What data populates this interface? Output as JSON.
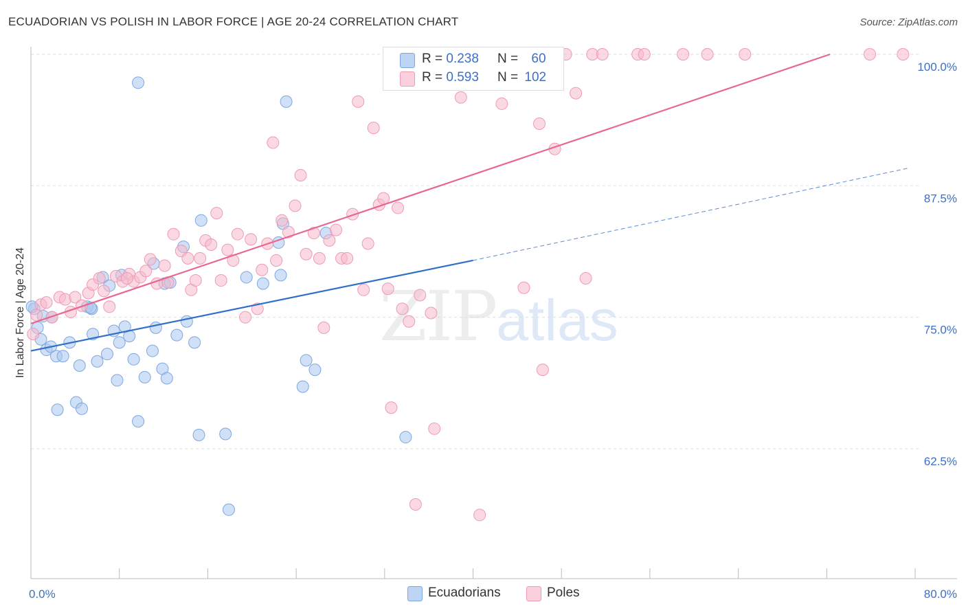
{
  "title": "ECUADORIAN VS POLISH IN LABOR FORCE | AGE 20-24 CORRELATION CHART",
  "source": "Source: ZipAtlas.com",
  "watermark": {
    "zip": "ZIP",
    "atlas": "atlas"
  },
  "colors": {
    "blue_fill": "#a9c6ef",
    "blue_stroke": "#7ea7df",
    "blue_line": "#2f6fca",
    "pink_fill": "#f7b9cc",
    "pink_stroke": "#ef9ab5",
    "pink_line": "#e86790",
    "axis_label": "#3d6fc4",
    "grid": "#dddddd"
  },
  "legend": {
    "items": [
      {
        "r_label": "R = ",
        "r_value": "0.238",
        "n_label": "N = ",
        "n_value": "60"
      },
      {
        "r_label": "R = ",
        "r_value": "0.593",
        "n_label": "N = ",
        "n_value": "102"
      }
    ]
  },
  "bottom_legend": [
    "Ecuadorians",
    "Poles"
  ],
  "chart_data": {
    "type": "scatter",
    "title": "ECUADORIAN VS POLISH IN LABOR FORCE | AGE 20-24 CORRELATION CHART",
    "xlabel": "",
    "ylabel": "In Labor Force | Age 20-24",
    "xlim": [
      0,
      80
    ],
    "ylim": [
      52,
      101.5
    ],
    "x_tick_labels": [
      "0.0%",
      "80.0%"
    ],
    "y_ticks": [
      62.5,
      75.0,
      87.5,
      100.0
    ],
    "y_tick_labels": [
      "62.5%",
      "75.0%",
      "87.5%",
      "100.0%"
    ],
    "grid": true,
    "legend_position": "top-center",
    "series": [
      {
        "name": "Ecuadorians",
        "color": "#a9c6ef",
        "trend": {
          "x": [
            0,
            40
          ],
          "y": [
            71.8,
            80.4
          ],
          "dashed_to": [
            80,
            89.2
          ]
        },
        "points": [
          [
            0.3,
            75.8
          ],
          [
            0.6,
            74.0
          ],
          [
            0.9,
            72.9
          ],
          [
            1.1,
            75.1
          ],
          [
            1.4,
            71.9
          ],
          [
            1.8,
            72.2
          ],
          [
            2.3,
            71.3
          ],
          [
            2.9,
            71.3
          ],
          [
            3.5,
            72.6
          ],
          [
            4.4,
            70.4
          ],
          [
            5.1,
            76.0
          ],
          [
            5.6,
            73.4
          ],
          [
            5.5,
            75.8
          ],
          [
            6.0,
            70.8
          ],
          [
            6.9,
            71.5
          ],
          [
            7.5,
            73.7
          ],
          [
            8.0,
            72.6
          ],
          [
            7.8,
            69.0
          ],
          [
            8.5,
            74.1
          ],
          [
            8.9,
            73.2
          ],
          [
            9.3,
            71.0
          ],
          [
            9.7,
            65.1
          ],
          [
            10.3,
            69.3
          ],
          [
            11.0,
            71.8
          ],
          [
            11.3,
            74.0
          ],
          [
            11.1,
            80.1
          ],
          [
            12.1,
            78.2
          ],
          [
            11.9,
            70.1
          ],
          [
            12.3,
            69.2
          ],
          [
            13.2,
            73.3
          ],
          [
            13.8,
            81.7
          ],
          [
            14.1,
            74.6
          ],
          [
            14.8,
            72.6
          ],
          [
            15.4,
            84.2
          ],
          [
            15.2,
            63.8
          ],
          [
            17.6,
            63.9
          ],
          [
            17.9,
            56.7
          ],
          [
            19.5,
            78.8
          ],
          [
            21.0,
            78.2
          ],
          [
            22.4,
            82.1
          ],
          [
            22.8,
            83.9
          ],
          [
            22.6,
            79.0
          ],
          [
            23.1,
            95.5
          ],
          [
            24.6,
            68.4
          ],
          [
            24.9,
            70.9
          ],
          [
            25.7,
            70.0
          ],
          [
            26.7,
            83.0
          ],
          [
            6.5,
            78.8
          ],
          [
            7.1,
            78.0
          ],
          [
            8.2,
            79.0
          ],
          [
            9.7,
            97.3
          ],
          [
            2.4,
            66.2
          ],
          [
            4.1,
            66.9
          ],
          [
            4.6,
            66.3
          ],
          [
            1.9,
            75.0
          ],
          [
            5.4,
            75.9
          ],
          [
            12.6,
            78.3
          ],
          [
            33.9,
            63.6
          ],
          [
            0.1,
            76.0
          ],
          [
            34.0,
            100.0
          ]
        ]
      },
      {
        "name": "Poles",
        "color": "#f7b9cc",
        "trend": {
          "x": [
            0,
            72.3
          ],
          "y": [
            74.4,
            100.0
          ]
        },
        "points": [
          [
            0.2,
            73.4
          ],
          [
            0.5,
            75.2
          ],
          [
            0.9,
            76.2
          ],
          [
            1.4,
            76.4
          ],
          [
            1.9,
            75.0
          ],
          [
            2.6,
            76.9
          ],
          [
            3.1,
            76.7
          ],
          [
            3.6,
            75.5
          ],
          [
            4.0,
            76.9
          ],
          [
            4.6,
            76.1
          ],
          [
            5.2,
            77.3
          ],
          [
            5.6,
            78.1
          ],
          [
            6.2,
            78.7
          ],
          [
            6.6,
            77.5
          ],
          [
            7.1,
            76.0
          ],
          [
            7.7,
            78.9
          ],
          [
            8.3,
            78.4
          ],
          [
            8.9,
            79.1
          ],
          [
            9.3,
            78.4
          ],
          [
            9.9,
            78.8
          ],
          [
            10.4,
            79.4
          ],
          [
            10.8,
            80.5
          ],
          [
            11.4,
            78.2
          ],
          [
            12.1,
            79.9
          ],
          [
            12.4,
            78.3
          ],
          [
            12.9,
            82.9
          ],
          [
            13.6,
            81.3
          ],
          [
            14.2,
            80.6
          ],
          [
            14.5,
            77.6
          ],
          [
            14.9,
            78.5
          ],
          [
            15.3,
            80.6
          ],
          [
            15.8,
            82.3
          ],
          [
            16.3,
            81.9
          ],
          [
            16.8,
            84.9
          ],
          [
            17.2,
            78.5
          ],
          [
            17.8,
            81.4
          ],
          [
            18.3,
            80.4
          ],
          [
            18.7,
            82.9
          ],
          [
            19.4,
            75.0
          ],
          [
            19.9,
            82.4
          ],
          [
            20.5,
            75.8
          ],
          [
            20.9,
            79.5
          ],
          [
            21.4,
            82.0
          ],
          [
            21.9,
            91.6
          ],
          [
            22.2,
            80.4
          ],
          [
            22.7,
            84.2
          ],
          [
            23.3,
            83.1
          ],
          [
            23.9,
            85.6
          ],
          [
            24.4,
            88.5
          ],
          [
            24.9,
            81.0
          ],
          [
            25.6,
            83.0
          ],
          [
            26.1,
            80.6
          ],
          [
            26.5,
            74.0
          ],
          [
            27.0,
            82.3
          ],
          [
            27.6,
            83.3
          ],
          [
            28.1,
            80.6
          ],
          [
            28.6,
            80.6
          ],
          [
            29.1,
            84.8
          ],
          [
            29.6,
            95.5
          ],
          [
            30.1,
            77.6
          ],
          [
            30.5,
            82.0
          ],
          [
            31.0,
            93.0
          ],
          [
            31.5,
            85.7
          ],
          [
            31.9,
            86.3
          ],
          [
            32.3,
            77.7
          ],
          [
            32.6,
            66.4
          ],
          [
            33.2,
            85.4
          ],
          [
            33.6,
            75.8
          ],
          [
            34.2,
            74.6
          ],
          [
            34.8,
            57.2
          ],
          [
            35.2,
            77.1
          ],
          [
            36.2,
            75.4
          ],
          [
            36.5,
            64.4
          ],
          [
            37.1,
            100.0
          ],
          [
            38.9,
            95.9
          ],
          [
            40.3,
            100.0
          ],
          [
            40.6,
            56.2
          ],
          [
            41.5,
            100.0
          ],
          [
            42.3,
            100.0
          ],
          [
            42.6,
            95.3
          ],
          [
            44.2,
            100.0
          ],
          [
            44.6,
            77.8
          ],
          [
            45.2,
            100.0
          ],
          [
            46.0,
            93.4
          ],
          [
            46.3,
            70.0
          ],
          [
            47.4,
            91.0
          ],
          [
            48.4,
            100.0
          ],
          [
            49.3,
            96.3
          ],
          [
            50.8,
            100.0
          ],
          [
            50.2,
            78.7
          ],
          [
            51.7,
            100.0
          ],
          [
            54.9,
            100.0
          ],
          [
            55.5,
            100.0
          ],
          [
            59.0,
            100.0
          ],
          [
            61.2,
            100.0
          ],
          [
            64.6,
            100.0
          ],
          [
            75.9,
            100.0
          ],
          [
            78.9,
            100.0
          ],
          [
            43.8,
            100.0
          ],
          [
            40.9,
            100.0
          ],
          [
            39.3,
            100.0
          ],
          [
            8.7,
            78.7
          ]
        ]
      }
    ]
  }
}
